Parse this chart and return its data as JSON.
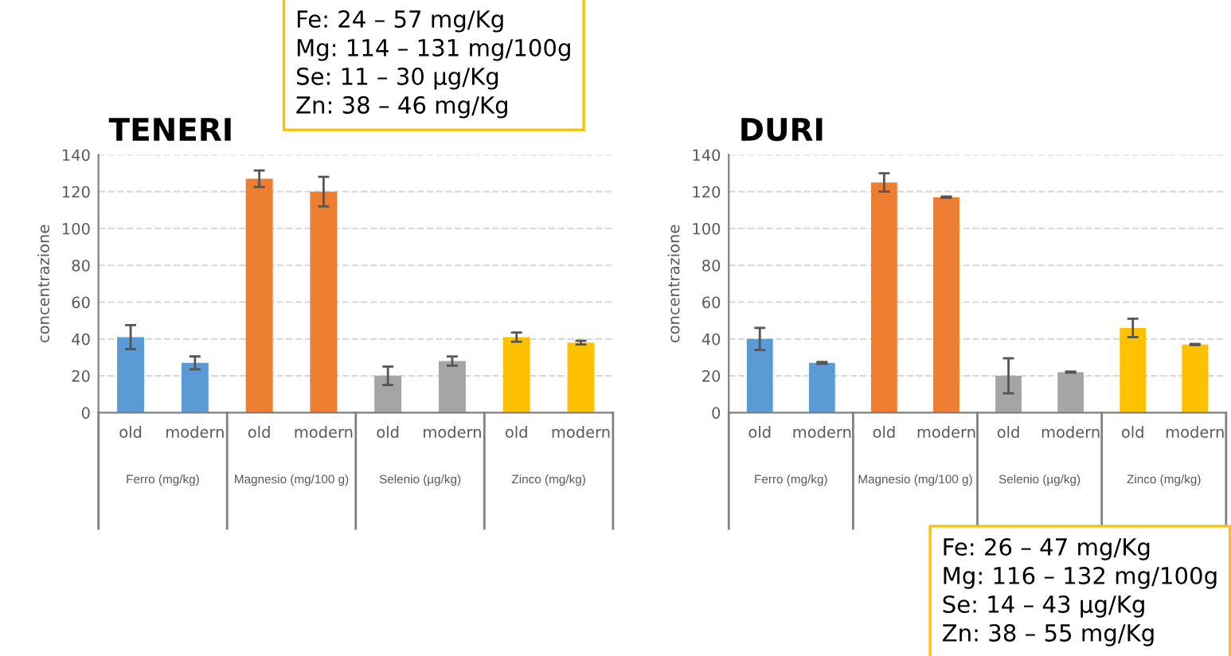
{
  "chart_data": [
    {
      "type": "bar",
      "title": "TENERI",
      "ylabel": "concentrazione",
      "categories": [
        "old",
        "modern",
        "old",
        "modern",
        "old",
        "modern",
        "old",
        "modern"
      ],
      "values": [
        41,
        27,
        127,
        120,
        20,
        28,
        41,
        38
      ],
      "errors": [
        6.5,
        3.5,
        4.5,
        8,
        5,
        2.5,
        2.5,
        1
      ],
      "colors": [
        "#5b9bd5",
        "#5b9bd5",
        "#ed7d31",
        "#ed7d31",
        "#a5a5a5",
        "#a5a5a5",
        "#ffc000",
        "#ffc000"
      ],
      "ylim": [
        0,
        140
      ],
      "yticks": [
        0,
        20,
        40,
        60,
        80,
        100,
        120,
        140
      ],
      "grid": "y",
      "annotations": [
        "Ferro (mg/kg)",
        "Magnesio (mg/100 g)",
        "Selenio (µg/kg)",
        "Zinco (mg/kg)",
        "Fe: 24 – 57 mg/Kg\nMg: 114 – 131 mg/100g\nSe: 11 – 30 µg/Kg\nZn: 38 – 46 mg/Kg"
      ]
    },
    {
      "type": "bar",
      "title": "DURI",
      "ylabel": "concentrazione",
      "categories": [
        "old",
        "modern",
        "old",
        "modern",
        "old",
        "modern",
        "old",
        "modern"
      ],
      "values": [
        40,
        27,
        125,
        117,
        20,
        22,
        46,
        37
      ],
      "errors": [
        6,
        0.5,
        5,
        0.3,
        9.5,
        0.3,
        5,
        0.3
      ],
      "colors": [
        "#5b9bd5",
        "#5b9bd5",
        "#ed7d31",
        "#ed7d31",
        "#a5a5a5",
        "#a5a5a5",
        "#ffc000",
        "#ffc000"
      ],
      "ylim": [
        0,
        140
      ],
      "yticks": [
        0,
        20,
        40,
        60,
        80,
        100,
        120,
        140
      ],
      "grid": "y",
      "annotations": [
        "Ferro (mg/kg)",
        "Magnesio (mg/100 g)",
        "Selenio (µg/kg)",
        "Zinco (mg/kg)",
        "Fe: 26 – 47 mg/Kg\nMg: 116 – 132 mg/100g\nSe: 14 – 43 µg/Kg\nZn: 38 – 55 mg/Kg"
      ]
    }
  ]
}
